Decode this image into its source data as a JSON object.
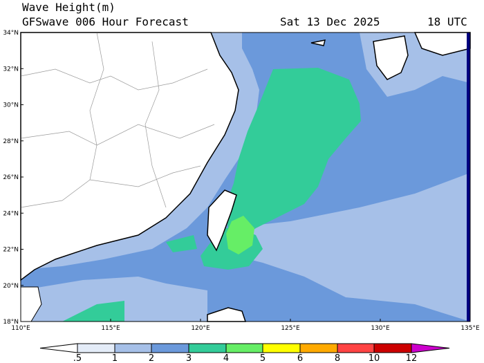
{
  "header": {
    "title": "Wave Height(m)",
    "model": "GFSwave 006 Hour Forecast",
    "date": "Sat 13 Dec 2025",
    "time": "18 UTC"
  },
  "axes": {
    "lat_labels": [
      "34°N",
      "32°N",
      "30°N",
      "28°N",
      "26°N",
      "24°N",
      "22°N",
      "20°N",
      "18°N"
    ],
    "lon_labels": [
      "110°E",
      "115°E",
      "120°E",
      "125°E",
      "130°E",
      "135°E"
    ]
  },
  "colorbar": {
    "labels": [
      ".5",
      "1",
      "2",
      "3",
      "4",
      "5",
      "6",
      "8",
      "10",
      "12"
    ]
  }
}
